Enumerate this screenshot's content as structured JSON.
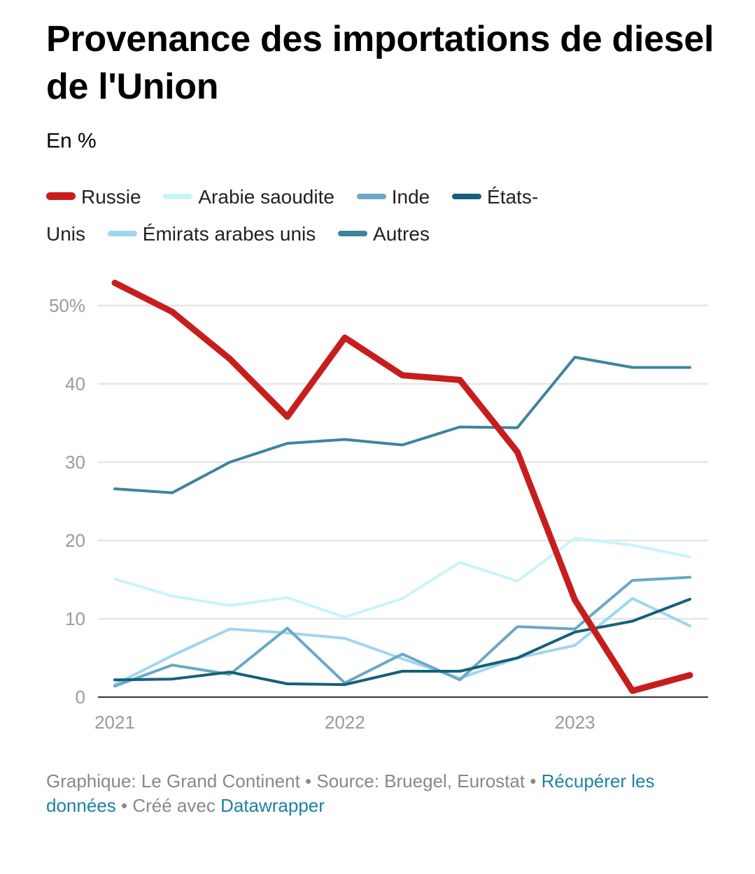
{
  "title": "Provenance des importations de diesel de l'Union",
  "subtitle": "En %",
  "colors": {
    "russie": "#c71e1d",
    "arabie": "#c9f5f7",
    "inde": "#6aa8c4",
    "usa": "#15607a",
    "emirats": "#9fd6ee",
    "autres": "#3e849e",
    "grid": "#e6e6e6",
    "axis": "#333333",
    "link": "#1d81a2"
  },
  "chart_data": {
    "type": "line",
    "x": [
      "2021-Q1",
      "2021-Q2",
      "2021-Q3",
      "2021-Q4",
      "2022-Q1",
      "2022-Q2",
      "2022-Q3",
      "2022-Q4",
      "2023-Q1",
      "2023-Q2",
      "2023-Q3"
    ],
    "ylim": [
      0,
      55
    ],
    "yticks": [
      0,
      10,
      20,
      30,
      40,
      50
    ],
    "ytick_labels": [
      "0",
      "10",
      "20",
      "30",
      "40",
      "50%"
    ],
    "xticks": [
      "2021",
      "2022",
      "2023"
    ],
    "grid": true,
    "legend_position": "top",
    "series": [
      {
        "key": "russie",
        "name": "Russie",
        "values": [
          52.9,
          49.2,
          43.2,
          35.8,
          45.9,
          41.1,
          40.5,
          31.3,
          12.4,
          0.8,
          2.8
        ]
      },
      {
        "key": "arabie",
        "name": "Arabie saoudite",
        "values": [
          15.1,
          12.9,
          11.7,
          12.7,
          10.2,
          12.6,
          17.2,
          14.8,
          20.3,
          19.4,
          17.9
        ]
      },
      {
        "key": "inde",
        "name": "Inde",
        "values": [
          1.4,
          4.1,
          2.9,
          8.8,
          1.8,
          5.5,
          2.2,
          9.0,
          8.7,
          14.9,
          15.3
        ]
      },
      {
        "key": "usa",
        "name": "États-Unis",
        "values": [
          2.2,
          2.3,
          3.2,
          1.7,
          1.6,
          3.3,
          3.3,
          5.0,
          8.3,
          9.7,
          12.5
        ]
      },
      {
        "key": "emirats",
        "name": "Émirats arabes unis",
        "values": [
          1.6,
          5.3,
          8.7,
          8.2,
          7.5,
          4.9,
          2.4,
          5.0,
          6.6,
          12.6,
          9.1
        ]
      },
      {
        "key": "autres",
        "name": "Autres",
        "values": [
          26.6,
          26.1,
          30.0,
          32.4,
          32.9,
          32.2,
          34.5,
          34.4,
          43.4,
          42.1,
          42.1
        ]
      }
    ]
  },
  "footer": {
    "credit": "Graphique: Le Grand Continent",
    "sep1": " • ",
    "source": "Source: Bruegel, Eurostat",
    "sep2": " • ",
    "download_link": "Récupérer les données",
    "sep3": " • ",
    "made_with": "Créé avec ",
    "datawrapper_link": "Datawrapper"
  }
}
